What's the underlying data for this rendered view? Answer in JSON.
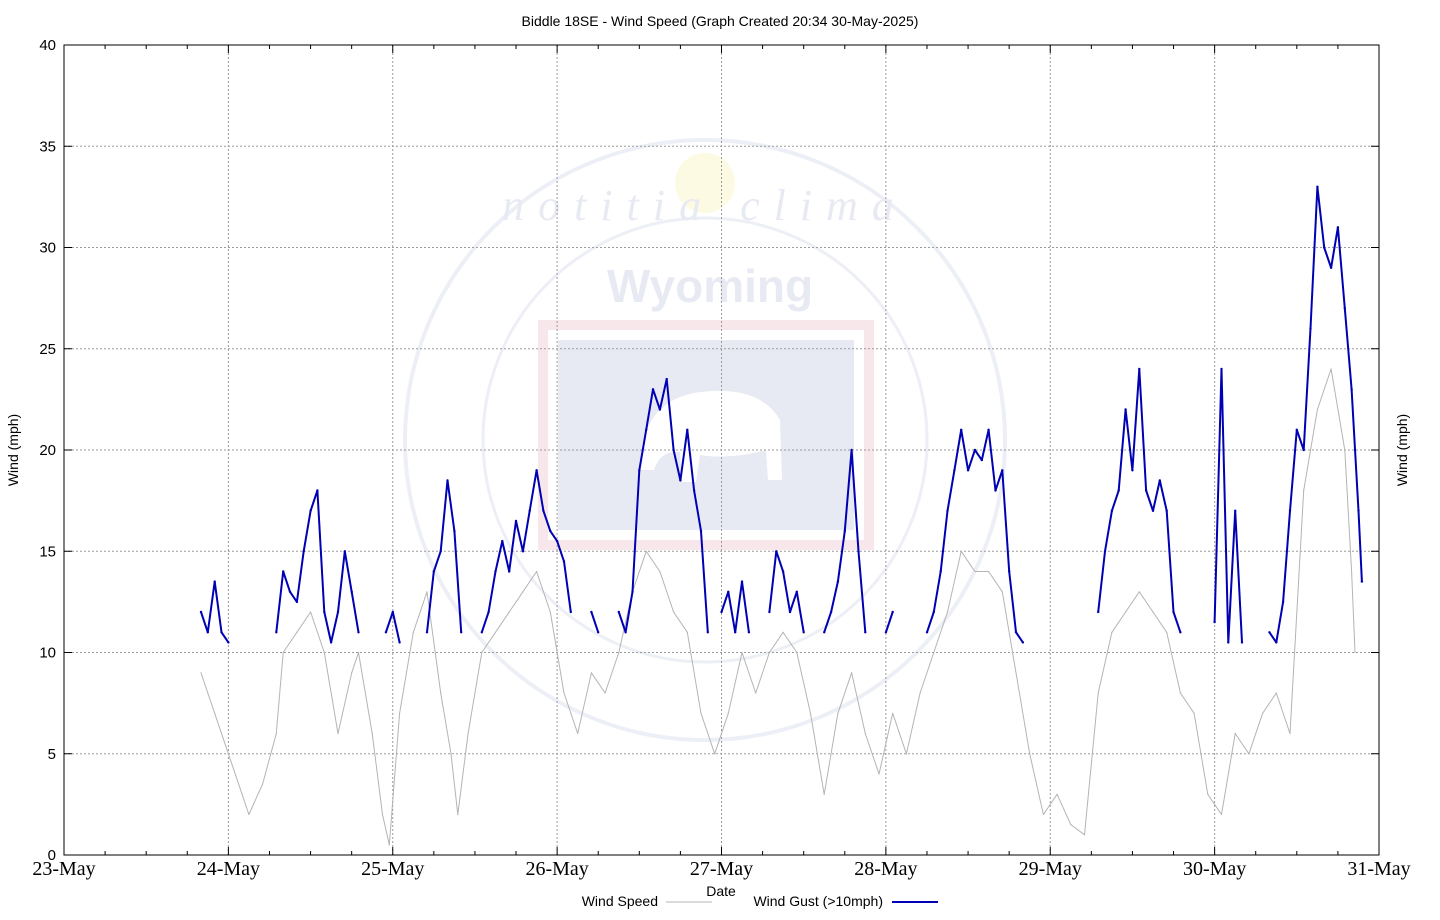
{
  "chart_data": {
    "type": "line",
    "title": "Biddle 18SE - Wind Speed (Graph Created 20:34 30-May-2025)",
    "xlabel": "Date",
    "ylabel_left": "Wind (mph)",
    "ylabel_right": "Wind (mph)",
    "ylim": [
      0,
      40
    ],
    "yticks": [
      "0",
      "5",
      "10",
      "15",
      "20",
      "25",
      "30",
      "35",
      "40"
    ],
    "xlim": [
      "2025-05-23 00:00",
      "2025-05-31 00:00"
    ],
    "xticks": [
      "23-May",
      "24-May",
      "25-May",
      "26-May",
      "27-May",
      "28-May",
      "29-May",
      "30-May",
      "31-May"
    ],
    "grid": true,
    "legend_position": "bottom",
    "watermark": {
      "arc_text": "notitia clima",
      "center_text": "Wyoming"
    },
    "series": [
      {
        "name": "Wind Speed",
        "color": "#b4b4b4",
        "points": [
          [
            "2025-05-23 20:00",
            9.0
          ],
          [
            "2025-05-23 21:00",
            8.0
          ],
          [
            "2025-05-23 22:00",
            7.0
          ],
          [
            "2025-05-24 00:00",
            5.0
          ],
          [
            "2025-05-24 02:00",
            3.0
          ],
          [
            "2025-05-24 03:00",
            2.0
          ],
          [
            "2025-05-24 05:00",
            3.5
          ],
          [
            "2025-05-24 07:00",
            6.0
          ],
          [
            "2025-05-24 08:00",
            10.0
          ],
          [
            "2025-05-24 10:00",
            11.0
          ],
          [
            "2025-05-24 12:00",
            12.0
          ],
          [
            "2025-05-24 14:00",
            10.0
          ],
          [
            "2025-05-24 16:00",
            6.0
          ],
          [
            "2025-05-24 18:00",
            9.0
          ],
          [
            "2025-05-24 19:00",
            10.0
          ],
          [
            "2025-05-24 21:00",
            6.0
          ],
          [
            "2025-05-24 22:30",
            2.0
          ],
          [
            "2025-05-24 23:30",
            0.5
          ],
          [
            "2025-05-25 01:00",
            7.0
          ],
          [
            "2025-05-25 03:00",
            11.0
          ],
          [
            "2025-05-25 05:00",
            13.0
          ],
          [
            "2025-05-25 07:00",
            8.0
          ],
          [
            "2025-05-25 08:30",
            5.0
          ],
          [
            "2025-05-25 09:30",
            2.0
          ],
          [
            "2025-05-25 11:00",
            6.0
          ],
          [
            "2025-05-25 13:00",
            10.0
          ],
          [
            "2025-05-25 15:00",
            11.0
          ],
          [
            "2025-05-25 17:00",
            12.0
          ],
          [
            "2025-05-25 19:00",
            13.0
          ],
          [
            "2025-05-25 21:00",
            14.0
          ],
          [
            "2025-05-25 23:00",
            12.0
          ],
          [
            "2025-05-26 01:00",
            8.0
          ],
          [
            "2025-05-26 03:00",
            6.0
          ],
          [
            "2025-05-26 05:00",
            9.0
          ],
          [
            "2025-05-26 07:00",
            8.0
          ],
          [
            "2025-05-26 09:00",
            10.0
          ],
          [
            "2025-05-26 11:00",
            13.0
          ],
          [
            "2025-05-26 13:00",
            15.0
          ],
          [
            "2025-05-26 15:00",
            14.0
          ],
          [
            "2025-05-26 17:00",
            12.0
          ],
          [
            "2025-05-26 19:00",
            11.0
          ],
          [
            "2025-05-26 21:00",
            7.0
          ],
          [
            "2025-05-26 23:00",
            5.0
          ],
          [
            "2025-05-27 01:00",
            7.0
          ],
          [
            "2025-05-27 03:00",
            10.0
          ],
          [
            "2025-05-27 05:00",
            8.0
          ],
          [
            "2025-05-27 07:00",
            10.0
          ],
          [
            "2025-05-27 09:00",
            11.0
          ],
          [
            "2025-05-27 11:00",
            10.0
          ],
          [
            "2025-05-27 13:00",
            7.0
          ],
          [
            "2025-05-27 15:00",
            3.0
          ],
          [
            "2025-05-27 17:00",
            7.0
          ],
          [
            "2025-05-27 19:00",
            9.0
          ],
          [
            "2025-05-27 21:00",
            6.0
          ],
          [
            "2025-05-27 23:00",
            4.0
          ],
          [
            "2025-05-28 01:00",
            7.0
          ],
          [
            "2025-05-28 03:00",
            5.0
          ],
          [
            "2025-05-28 05:00",
            8.0
          ],
          [
            "2025-05-28 07:00",
            10.0
          ],
          [
            "2025-05-28 09:00",
            12.0
          ],
          [
            "2025-05-28 11:00",
            15.0
          ],
          [
            "2025-05-28 13:00",
            14.0
          ],
          [
            "2025-05-28 15:00",
            14.0
          ],
          [
            "2025-05-28 17:00",
            13.0
          ],
          [
            "2025-05-28 19:00",
            9.0
          ],
          [
            "2025-05-28 21:00",
            5.0
          ],
          [
            "2025-05-28 23:00",
            2.0
          ],
          [
            "2025-05-29 01:00",
            3.0
          ],
          [
            "2025-05-29 03:00",
            1.5
          ],
          [
            "2025-05-29 05:00",
            1.0
          ],
          [
            "2025-05-29 07:00",
            8.0
          ],
          [
            "2025-05-29 09:00",
            11.0
          ],
          [
            "2025-05-29 11:00",
            12.0
          ],
          [
            "2025-05-29 13:00",
            13.0
          ],
          [
            "2025-05-29 15:00",
            12.0
          ],
          [
            "2025-05-29 17:00",
            11.0
          ],
          [
            "2025-05-29 19:00",
            8.0
          ],
          [
            "2025-05-29 21:00",
            7.0
          ],
          [
            "2025-05-29 23:00",
            3.0
          ],
          [
            "2025-05-30 01:00",
            2.0
          ],
          [
            "2025-05-30 03:00",
            6.0
          ],
          [
            "2025-05-30 05:00",
            5.0
          ],
          [
            "2025-05-30 07:00",
            7.0
          ],
          [
            "2025-05-30 09:00",
            8.0
          ],
          [
            "2025-05-30 11:00",
            6.0
          ],
          [
            "2025-05-30 13:00",
            18.0
          ],
          [
            "2025-05-30 15:00",
            22.0
          ],
          [
            "2025-05-30 17:00",
            24.0
          ],
          [
            "2025-05-30 19:00",
            20.0
          ],
          [
            "2025-05-30 20:00",
            14.0
          ],
          [
            "2025-05-30 20:30",
            10.0
          ]
        ]
      },
      {
        "name": "Wind Gust (>10mph)",
        "color": "#0000b4",
        "points": [
          [
            "2025-05-23 20:00",
            12.0
          ],
          [
            "2025-05-23 21:00",
            11.0
          ],
          [
            "2025-05-23 22:00",
            13.5
          ],
          [
            "2025-05-23 23:00",
            11.0
          ],
          [
            "2025-05-24 00:00",
            10.5
          ],
          null,
          [
            "2025-05-24 07:00",
            11.0
          ],
          [
            "2025-05-24 08:00",
            14.0
          ],
          [
            "2025-05-24 09:00",
            13.0
          ],
          [
            "2025-05-24 10:00",
            12.5
          ],
          [
            "2025-05-24 11:00",
            15.0
          ],
          [
            "2025-05-24 12:00",
            17.0
          ],
          [
            "2025-05-24 13:00",
            18.0
          ],
          [
            "2025-05-24 14:00",
            12.0
          ],
          [
            "2025-05-24 15:00",
            10.5
          ],
          [
            "2025-05-24 16:00",
            12.0
          ],
          [
            "2025-05-24 17:00",
            15.0
          ],
          [
            "2025-05-24 18:00",
            13.0
          ],
          [
            "2025-05-24 19:00",
            11.0
          ],
          null,
          [
            "2025-05-24 23:00",
            11.0
          ],
          [
            "2025-05-25 00:00",
            12.0
          ],
          [
            "2025-05-25 01:00",
            10.5
          ],
          null,
          [
            "2025-05-25 05:00",
            11.0
          ],
          [
            "2025-05-25 06:00",
            14.0
          ],
          [
            "2025-05-25 07:00",
            15.0
          ],
          [
            "2025-05-25 08:00",
            18.5
          ],
          [
            "2025-05-25 09:00",
            16.0
          ],
          [
            "2025-05-25 10:00",
            11.0
          ],
          null,
          [
            "2025-05-25 13:00",
            11.0
          ],
          [
            "2025-05-25 14:00",
            12.0
          ],
          [
            "2025-05-25 15:00",
            14.0
          ],
          [
            "2025-05-25 16:00",
            15.5
          ],
          [
            "2025-05-25 17:00",
            14.0
          ],
          [
            "2025-05-25 18:00",
            16.5
          ],
          [
            "2025-05-25 19:00",
            15.0
          ],
          [
            "2025-05-25 20:00",
            17.0
          ],
          [
            "2025-05-25 21:00",
            19.0
          ],
          [
            "2025-05-25 22:00",
            17.0
          ],
          [
            "2025-05-25 23:00",
            16.0
          ],
          [
            "2025-05-26 00:00",
            15.5
          ],
          [
            "2025-05-26 01:00",
            14.5
          ],
          [
            "2025-05-26 02:00",
            12.0
          ],
          null,
          [
            "2025-05-26 05:00",
            12.0
          ],
          [
            "2025-05-26 06:00",
            11.0
          ],
          null,
          [
            "2025-05-26 09:00",
            12.0
          ],
          [
            "2025-05-26 10:00",
            11.0
          ],
          [
            "2025-05-26 11:00",
            13.0
          ],
          [
            "2025-05-26 12:00",
            19.0
          ],
          [
            "2025-05-26 13:00",
            21.0
          ],
          [
            "2025-05-26 14:00",
            23.0
          ],
          [
            "2025-05-26 15:00",
            22.0
          ],
          [
            "2025-05-26 16:00",
            23.5
          ],
          [
            "2025-05-26 17:00",
            20.0
          ],
          [
            "2025-05-26 18:00",
            18.5
          ],
          [
            "2025-05-26 19:00",
            21.0
          ],
          [
            "2025-05-26 20:00",
            18.0
          ],
          [
            "2025-05-26 21:00",
            16.0
          ],
          [
            "2025-05-26 22:00",
            11.0
          ],
          null,
          [
            "2025-05-27 00:00",
            12.0
          ],
          [
            "2025-05-27 01:00",
            13.0
          ],
          [
            "2025-05-27 02:00",
            11.0
          ],
          [
            "2025-05-27 03:00",
            13.5
          ],
          [
            "2025-05-27 04:00",
            11.0
          ],
          null,
          [
            "2025-05-27 07:00",
            12.0
          ],
          [
            "2025-05-27 08:00",
            15.0
          ],
          [
            "2025-05-27 09:00",
            14.0
          ],
          [
            "2025-05-27 10:00",
            12.0
          ],
          [
            "2025-05-27 11:00",
            13.0
          ],
          [
            "2025-05-27 12:00",
            11.0
          ],
          null,
          [
            "2025-05-27 15:00",
            11.0
          ],
          [
            "2025-05-27 16:00",
            12.0
          ],
          [
            "2025-05-27 17:00",
            13.5
          ],
          [
            "2025-05-27 18:00",
            16.0
          ],
          [
            "2025-05-27 19:00",
            20.0
          ],
          [
            "2025-05-27 20:00",
            15.0
          ],
          [
            "2025-05-27 21:00",
            11.0
          ],
          null,
          [
            "2025-05-28 00:00",
            11.0
          ],
          [
            "2025-05-28 01:00",
            12.0
          ],
          null,
          [
            "2025-05-28 06:00",
            11.0
          ],
          [
            "2025-05-28 07:00",
            12.0
          ],
          [
            "2025-05-28 08:00",
            14.0
          ],
          [
            "2025-05-28 09:00",
            17.0
          ],
          [
            "2025-05-28 10:00",
            19.0
          ],
          [
            "2025-05-28 11:00",
            21.0
          ],
          [
            "2025-05-28 12:00",
            19.0
          ],
          [
            "2025-05-28 13:00",
            20.0
          ],
          [
            "2025-05-28 14:00",
            19.5
          ],
          [
            "2025-05-28 15:00",
            21.0
          ],
          [
            "2025-05-28 16:00",
            18.0
          ],
          [
            "2025-05-28 17:00",
            19.0
          ],
          [
            "2025-05-28 18:00",
            14.0
          ],
          [
            "2025-05-28 19:00",
            11.0
          ],
          [
            "2025-05-28 20:00",
            10.5
          ],
          null,
          [
            "2025-05-29 07:00",
            12.0
          ],
          [
            "2025-05-29 08:00",
            15.0
          ],
          [
            "2025-05-29 09:00",
            17.0
          ],
          [
            "2025-05-29 10:00",
            18.0
          ],
          [
            "2025-05-29 11:00",
            22.0
          ],
          [
            "2025-05-29 12:00",
            19.0
          ],
          [
            "2025-05-29 13:00",
            24.0
          ],
          [
            "2025-05-29 14:00",
            18.0
          ],
          [
            "2025-05-29 15:00",
            17.0
          ],
          [
            "2025-05-29 16:00",
            18.5
          ],
          [
            "2025-05-29 17:00",
            17.0
          ],
          [
            "2025-05-29 18:00",
            12.0
          ],
          [
            "2025-05-29 19:00",
            11.0
          ],
          null,
          [
            "2025-05-30 00:00",
            11.5
          ],
          [
            "2025-05-30 01:00",
            24.0
          ],
          [
            "2025-05-30 02:00",
            10.5
          ],
          [
            "2025-05-30 03:00",
            17.0
          ],
          [
            "2025-05-30 04:00",
            10.5
          ],
          null,
          [
            "2025-05-30 08:00",
            11.0
          ],
          [
            "2025-05-30 09:00",
            10.5
          ],
          [
            "2025-05-30 10:00",
            12.5
          ],
          [
            "2025-05-30 11:00",
            17.0
          ],
          [
            "2025-05-30 12:00",
            21.0
          ],
          [
            "2025-05-30 13:00",
            20.0
          ],
          [
            "2025-05-30 14:00",
            26.0
          ],
          [
            "2025-05-30 15:00",
            33.0
          ],
          [
            "2025-05-30 16:00",
            30.0
          ],
          [
            "2025-05-30 17:00",
            29.0
          ],
          [
            "2025-05-30 18:00",
            31.0
          ],
          [
            "2025-05-30 19:00",
            27.0
          ],
          [
            "2025-05-30 20:00",
            23.0
          ],
          [
            "2025-05-30 21:00",
            17.0
          ],
          [
            "2025-05-30 21:30",
            13.5
          ]
        ]
      }
    ]
  }
}
